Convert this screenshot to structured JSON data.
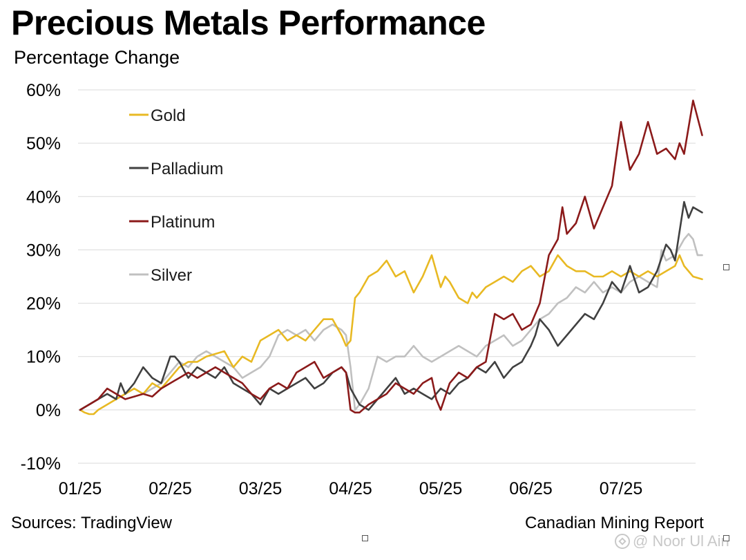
{
  "title": "Precious Metals Performance",
  "subtitle": "Percentage Change",
  "source": "Sources: TradingView",
  "credit": "Canadian Mining Report",
  "watermark": "@ Noor Ul Ain",
  "chart_data": {
    "type": "line",
    "title": "Precious Metals Performance",
    "ylabel": "Percentage Change",
    "xlabel": "",
    "xlim": [
      0,
      6.9
    ],
    "ylim": [
      -10,
      60
    ],
    "y_ticks": [
      -10,
      0,
      10,
      20,
      30,
      40,
      50,
      60
    ],
    "y_tick_labels": [
      "-10%",
      "0%",
      "10%",
      "20%",
      "30%",
      "40%",
      "50%",
      "60%"
    ],
    "x_ticks": [
      0,
      1,
      2,
      3,
      4,
      5,
      6
    ],
    "x_tick_labels": [
      "01/25",
      "02/25",
      "03/25",
      "04/25",
      "05/25",
      "06/25",
      "07/25"
    ],
    "grid": "horizontal",
    "legend_position": "top-left",
    "series": [
      {
        "name": "Gold",
        "color": "#E8B923",
        "x": [
          0,
          0.05,
          0.1,
          0.15,
          0.2,
          0.3,
          0.4,
          0.5,
          0.6,
          0.7,
          0.8,
          0.9,
          1.0,
          1.1,
          1.2,
          1.3,
          1.4,
          1.5,
          1.6,
          1.7,
          1.8,
          1.9,
          2.0,
          2.1,
          2.2,
          2.3,
          2.4,
          2.5,
          2.6,
          2.7,
          2.8,
          2.9,
          2.95,
          3.0,
          3.05,
          3.1,
          3.2,
          3.3,
          3.4,
          3.5,
          3.6,
          3.7,
          3.8,
          3.9,
          4.0,
          4.05,
          4.1,
          4.2,
          4.3,
          4.35,
          4.4,
          4.5,
          4.6,
          4.7,
          4.8,
          4.9,
          5.0,
          5.1,
          5.2,
          5.3,
          5.4,
          5.5,
          5.6,
          5.7,
          5.8,
          5.9,
          6.0,
          6.1,
          6.2,
          6.3,
          6.4,
          6.5,
          6.6,
          6.65,
          6.7,
          6.8,
          6.9
        ],
        "values": [
          0,
          -0.5,
          -0.8,
          -0.8,
          0,
          1,
          2,
          3,
          4,
          3,
          5,
          4,
          6,
          8,
          9,
          9,
          10,
          10.5,
          11,
          8,
          10,
          9,
          13,
          14,
          15,
          13,
          14,
          13,
          15,
          17,
          17,
          14,
          12,
          13,
          21,
          22,
          25,
          26,
          28,
          25,
          26,
          22,
          25,
          29,
          23,
          25,
          24,
          21,
          20,
          22,
          21,
          23,
          24,
          25,
          24,
          26,
          27,
          25,
          26,
          29,
          27,
          26,
          26,
          25,
          25,
          26,
          25,
          26,
          25,
          26,
          25,
          26,
          27,
          29,
          27,
          25,
          24.5
        ]
      },
      {
        "name": "Palladium",
        "color": "#404040",
        "x": [
          0,
          0.1,
          0.2,
          0.3,
          0.4,
          0.45,
          0.5,
          0.6,
          0.7,
          0.8,
          0.9,
          1.0,
          1.05,
          1.1,
          1.2,
          1.3,
          1.4,
          1.5,
          1.6,
          1.7,
          1.8,
          1.9,
          2.0,
          2.1,
          2.2,
          2.3,
          2.4,
          2.5,
          2.6,
          2.7,
          2.8,
          2.9,
          2.95,
          3.0,
          3.1,
          3.2,
          3.3,
          3.4,
          3.5,
          3.6,
          3.7,
          3.8,
          3.9,
          4.0,
          4.1,
          4.2,
          4.3,
          4.4,
          4.5,
          4.6,
          4.7,
          4.8,
          4.9,
          5.0,
          5.05,
          5.1,
          5.2,
          5.3,
          5.4,
          5.5,
          5.6,
          5.7,
          5.8,
          5.9,
          6.0,
          6.1,
          6.2,
          6.3,
          6.4,
          6.5,
          6.55,
          6.6,
          6.7,
          6.75,
          6.8,
          6.9
        ],
        "values": [
          0,
          1,
          2,
          3,
          2,
          5,
          3,
          5,
          8,
          6,
          5,
          10,
          10,
          9,
          6,
          8,
          7,
          6,
          8,
          5,
          4,
          3,
          1,
          4,
          3,
          4,
          5,
          6,
          4,
          5,
          7,
          8,
          7,
          4,
          1,
          0,
          2,
          4,
          6,
          3,
          4,
          3,
          2,
          4,
          3,
          5,
          6,
          8,
          7,
          9,
          6,
          8,
          9,
          12,
          14,
          17,
          15,
          12,
          14,
          16,
          18,
          17,
          20,
          24,
          22,
          27,
          22,
          23,
          26,
          31,
          30,
          28,
          39,
          36,
          38,
          37
        ]
      },
      {
        "name": "Platinum",
        "color": "#8B1A1A",
        "x": [
          0,
          0.1,
          0.2,
          0.25,
          0.3,
          0.4,
          0.5,
          0.6,
          0.7,
          0.8,
          0.9,
          1.0,
          1.1,
          1.2,
          1.3,
          1.4,
          1.5,
          1.6,
          1.7,
          1.8,
          1.9,
          2.0,
          2.1,
          2.2,
          2.3,
          2.4,
          2.5,
          2.6,
          2.7,
          2.8,
          2.9,
          2.95,
          3.0,
          3.05,
          3.1,
          3.2,
          3.3,
          3.4,
          3.5,
          3.6,
          3.7,
          3.8,
          3.9,
          3.95,
          4.0,
          4.1,
          4.2,
          4.3,
          4.4,
          4.5,
          4.6,
          4.7,
          4.8,
          4.9,
          5.0,
          5.1,
          5.2,
          5.3,
          5.35,
          5.4,
          5.5,
          5.6,
          5.7,
          5.8,
          5.9,
          6.0,
          6.1,
          6.2,
          6.3,
          6.4,
          6.5,
          6.6,
          6.65,
          6.7,
          6.8,
          6.9
        ],
        "values": [
          0,
          1,
          2,
          3,
          4,
          3,
          2,
          2.5,
          3,
          2.5,
          4,
          5,
          6,
          7,
          6,
          7,
          8,
          7,
          6,
          5,
          3,
          2,
          4,
          5,
          4,
          7,
          8,
          9,
          6,
          7,
          8,
          7,
          0,
          -0.5,
          -0.5,
          1,
          2,
          3,
          5,
          4,
          3,
          5,
          6,
          2,
          0,
          5,
          7,
          6,
          8,
          9,
          18,
          17,
          18,
          15,
          16,
          20,
          29,
          32,
          38,
          33,
          35,
          40,
          34,
          38,
          42,
          54,
          45,
          48,
          54,
          48,
          49,
          47,
          50,
          48,
          58,
          51.5
        ]
      },
      {
        "name": "Silver",
        "color": "#C0C0C0",
        "x": [
          0,
          0.1,
          0.2,
          0.3,
          0.4,
          0.5,
          0.6,
          0.7,
          0.8,
          0.9,
          1.0,
          1.1,
          1.2,
          1.3,
          1.4,
          1.5,
          1.6,
          1.7,
          1.8,
          1.9,
          2.0,
          2.1,
          2.2,
          2.3,
          2.4,
          2.5,
          2.6,
          2.7,
          2.8,
          2.9,
          2.95,
          3.0,
          3.05,
          3.1,
          3.2,
          3.3,
          3.4,
          3.5,
          3.6,
          3.7,
          3.8,
          3.9,
          4.0,
          4.1,
          4.2,
          4.3,
          4.4,
          4.5,
          4.6,
          4.7,
          4.8,
          4.9,
          5.0,
          5.1,
          5.2,
          5.3,
          5.4,
          5.5,
          5.6,
          5.7,
          5.8,
          5.9,
          6.0,
          6.1,
          6.2,
          6.3,
          6.4,
          6.45,
          6.5,
          6.6,
          6.7,
          6.75,
          6.8,
          6.85,
          6.9
        ],
        "values": [
          0,
          1,
          2,
          3,
          2,
          3,
          4,
          3,
          4,
          5,
          7,
          9,
          8,
          10,
          11,
          10,
          9,
          8,
          6,
          7,
          8,
          10,
          14,
          15,
          14,
          15,
          13,
          15,
          16,
          15,
          14,
          8,
          0,
          1,
          4,
          10,
          9,
          10,
          10,
          12,
          10,
          9,
          10,
          11,
          12,
          11,
          10,
          12,
          13,
          14,
          12,
          13,
          15,
          17,
          18,
          20,
          21,
          23,
          22,
          24,
          22,
          23,
          22,
          24,
          25,
          24,
          23,
          30,
          28,
          29,
          32,
          33,
          32,
          29,
          29
        ]
      }
    ]
  }
}
